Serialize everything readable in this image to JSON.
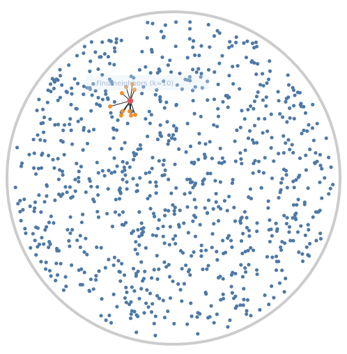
{
  "diagram": {
    "type": "nearest-neighbor scatter in circular boundary",
    "label": "Find neighbors (k=10)",
    "colors": {
      "border": "#cccccc",
      "point": "#4e79a7",
      "neighbor": "#f28e2b",
      "selected": "#e15759",
      "link": "#2b2b2b",
      "label_bg": "#dbe8f8",
      "label_text": "#9fb4cc"
    },
    "k": 10,
    "point_count": 900
  }
}
